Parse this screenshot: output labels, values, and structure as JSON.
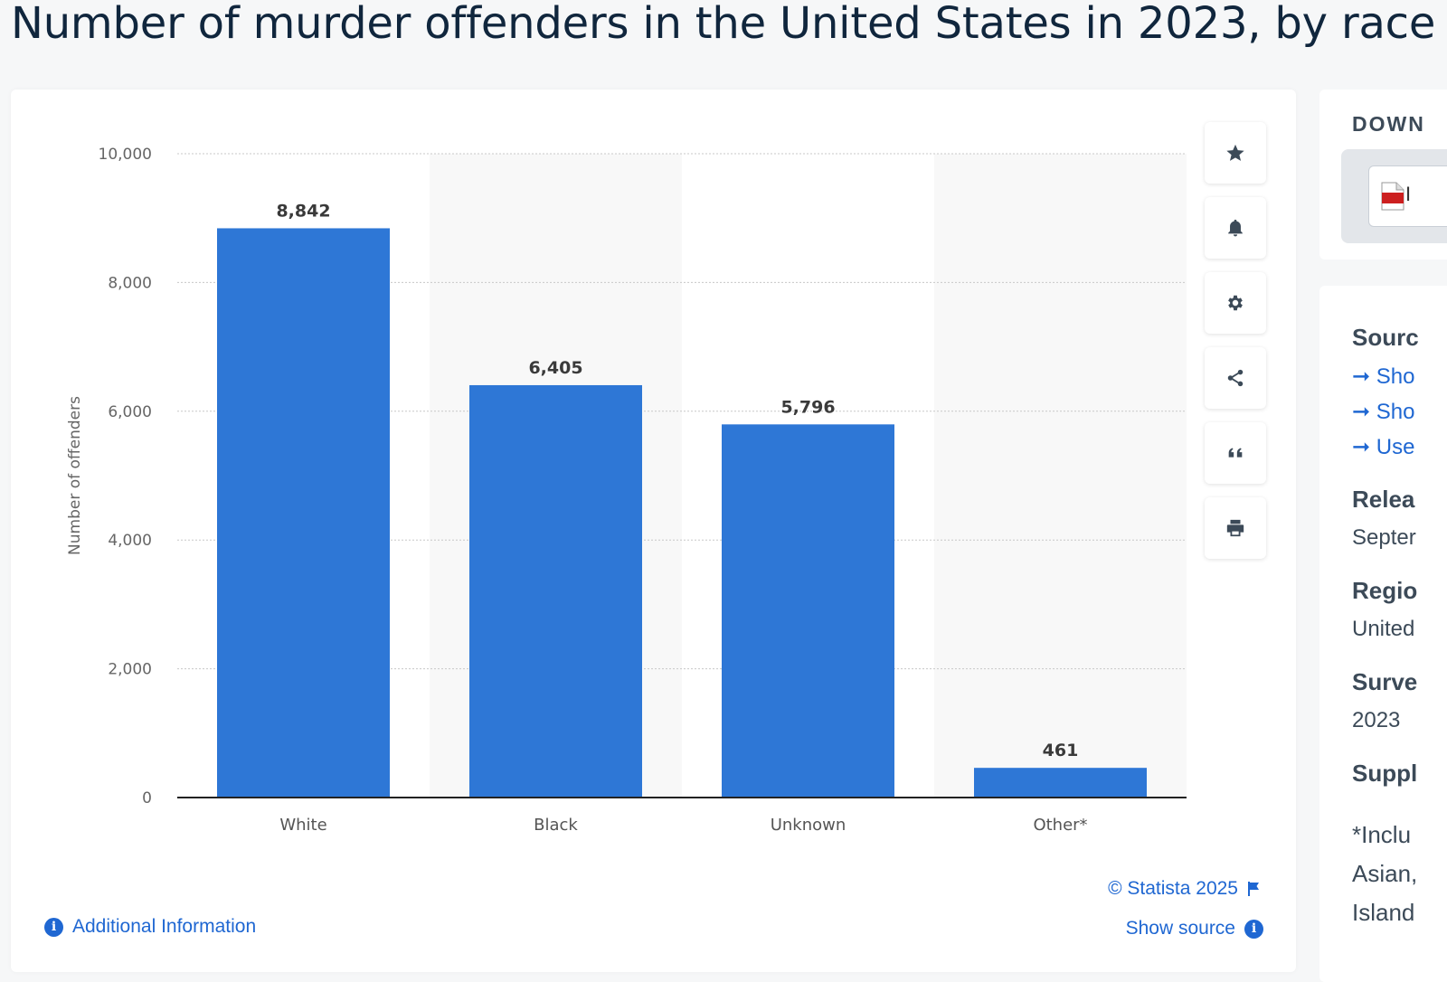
{
  "page": {
    "title": "Number of murder offenders in the United States in 2023, by race"
  },
  "chart_data": {
    "type": "bar",
    "categories": [
      "White",
      "Black",
      "Unknown",
      "Other*"
    ],
    "values": [
      8842,
      6405,
      5796,
      461
    ],
    "value_labels": [
      "8,842",
      "6,405",
      "5,796",
      "461"
    ],
    "ylabel": "Number of offenders",
    "xlabel": "",
    "ylim": [
      0,
      10000
    ],
    "yticks": [
      0,
      2000,
      4000,
      6000,
      8000,
      10000
    ],
    "ytick_labels": [
      "0",
      "2,000",
      "4,000",
      "6,000",
      "8,000",
      "10,000"
    ],
    "grid": true,
    "bar_color": "#2e77d6"
  },
  "chart_footer": {
    "copyright": "© Statista 2025",
    "show_source": "Show source",
    "additional_info": "Additional Information"
  },
  "toolbar": {
    "icons": [
      "star-icon",
      "bell-icon",
      "gear-icon",
      "share-icon",
      "quote-icon",
      "print-icon"
    ]
  },
  "sidebar": {
    "download_title": "DOWN",
    "pdf_label": "I",
    "source_heading": "Sourc",
    "source_links": [
      "Sho",
      "Sho",
      "Use"
    ],
    "release_heading": "Relea",
    "release_value": "Septer",
    "region_heading": "Regio",
    "region_value": "United",
    "survey_heading": "Surve",
    "survey_value": "2023",
    "supplementary_heading": "Suppl",
    "footnote_lines": [
      "*Inclu",
      "Asian,",
      "Island"
    ]
  },
  "colors": {
    "accent": "#1f67d2",
    "bar": "#2e77d6"
  }
}
